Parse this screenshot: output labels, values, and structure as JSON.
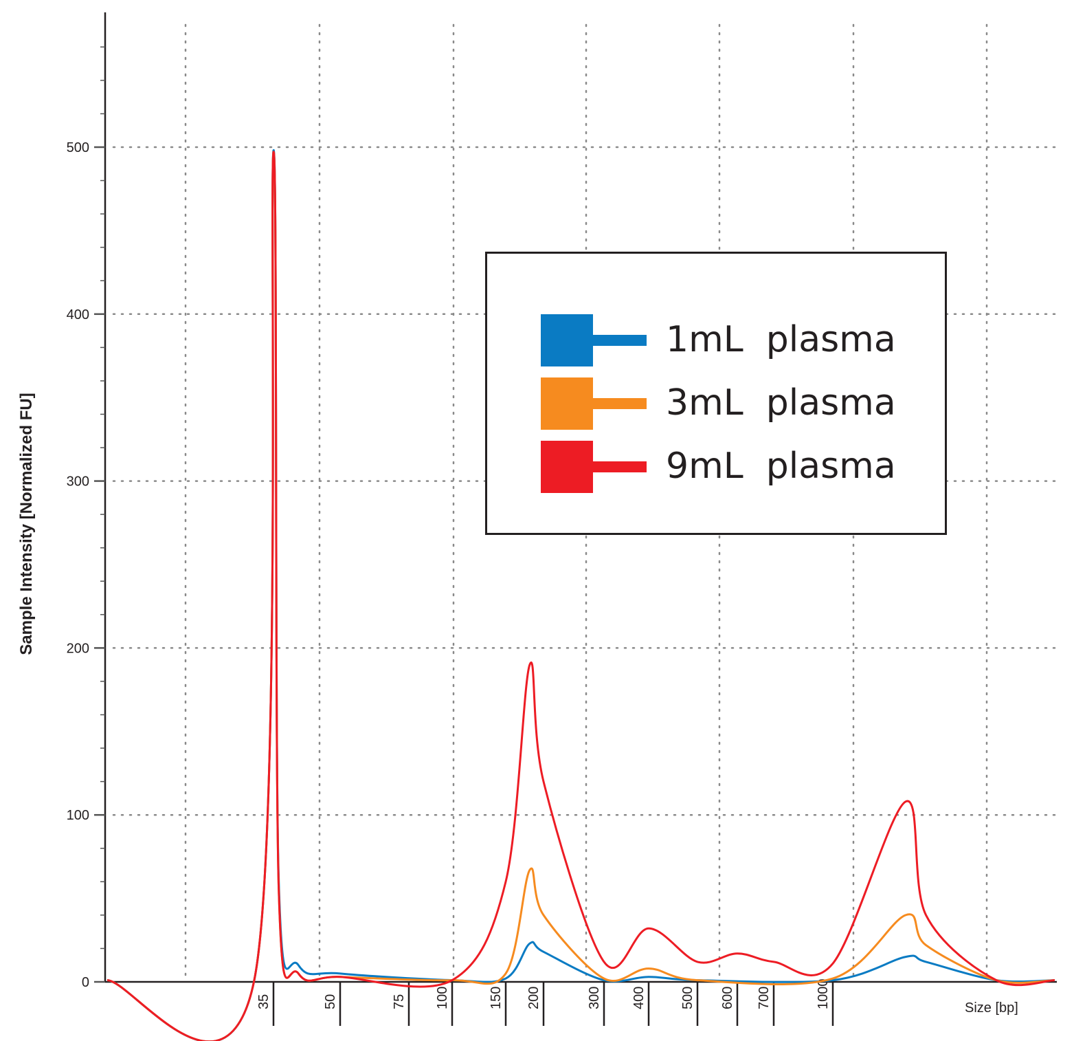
{
  "chart_data": {
    "type": "line",
    "title": "",
    "xlabel": "Size [bp]",
    "ylabel": "Sample Intensity [Normalized FU]",
    "ylim": [
      0,
      580
    ],
    "y_ticks": [
      0,
      100,
      200,
      300,
      400,
      500
    ],
    "x_ticks": [
      "35",
      "50",
      "75",
      "100",
      "150",
      "200",
      "300",
      "400",
      "500",
      "600",
      "700",
      "1000"
    ],
    "x_scale": "log-like (electropherogram)",
    "grid": true,
    "legend_placement": "center-right",
    "series": [
      {
        "name": "1mL  plasma",
        "color": "#0a7bc3",
        "points": [
          [
            34,
            1
          ],
          [
            35,
            498
          ],
          [
            36,
            60
          ],
          [
            40,
            10
          ],
          [
            50,
            5
          ],
          [
            100,
            1
          ],
          [
            150,
            2
          ],
          [
            180,
            23
          ],
          [
            200,
            18
          ],
          [
            300,
            1
          ],
          [
            400,
            3
          ],
          [
            500,
            1
          ],
          [
            1000,
            1
          ],
          [
            1500,
            15
          ],
          [
            1600,
            12
          ],
          [
            2000,
            1
          ]
        ]
      },
      {
        "name": "3mL  plasma",
        "color": "#f68b1f",
        "points": [
          [
            34,
            1
          ],
          [
            35,
            497
          ],
          [
            36,
            55
          ],
          [
            40,
            5
          ],
          [
            50,
            3
          ],
          [
            100,
            1
          ],
          [
            150,
            5
          ],
          [
            180,
            67
          ],
          [
            200,
            40
          ],
          [
            300,
            2
          ],
          [
            400,
            8
          ],
          [
            500,
            1
          ],
          [
            1000,
            2
          ],
          [
            1500,
            40
          ],
          [
            1600,
            22
          ],
          [
            2000,
            1
          ]
        ]
      },
      {
        "name": "9mL  plasma",
        "color": "#ed1c24",
        "points": [
          [
            34,
            1
          ],
          [
            35,
            497
          ],
          [
            36,
            55
          ],
          [
            40,
            5
          ],
          [
            50,
            3
          ],
          [
            100,
            1
          ],
          [
            150,
            60
          ],
          [
            180,
            190
          ],
          [
            200,
            120
          ],
          [
            300,
            12
          ],
          [
            400,
            32
          ],
          [
            500,
            12
          ],
          [
            600,
            17
          ],
          [
            700,
            12
          ],
          [
            1000,
            11
          ],
          [
            1500,
            108
          ],
          [
            1600,
            40
          ],
          [
            2000,
            1
          ]
        ]
      }
    ]
  }
}
